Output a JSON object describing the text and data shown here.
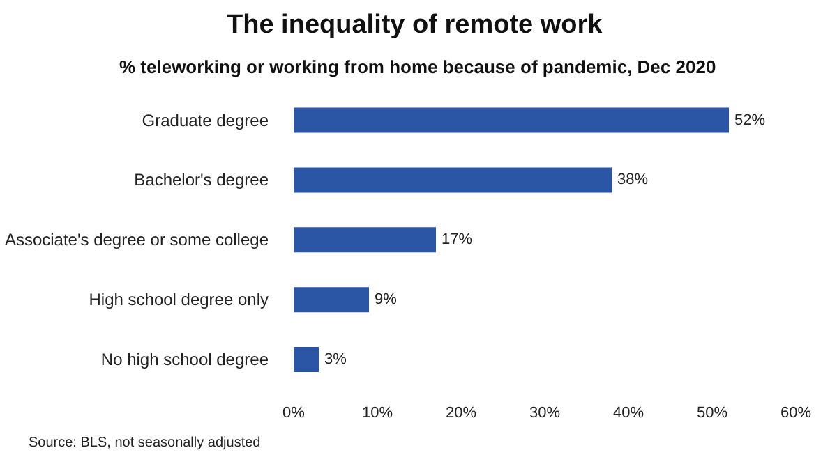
{
  "chart_data": {
    "type": "bar",
    "orientation": "horizontal",
    "title": "The inequality of remote work",
    "subtitle": "% teleworking or working from home because of pandemic, Dec 2020",
    "categories": [
      "Graduate degree",
      "Bachelor's degree",
      "Associate's degree or some college",
      "High school degree only",
      "No high school degree"
    ],
    "values": [
      52,
      38,
      17,
      9,
      3
    ],
    "color": "#2b55a5",
    "value_labels": [
      "52%",
      "38%",
      "17%",
      "9%",
      "3%"
    ],
    "xlim": [
      0,
      60
    ],
    "xticks": [
      {
        "value": 0,
        "label": "0%"
      },
      {
        "value": 10,
        "label": "10%"
      },
      {
        "value": 20,
        "label": "20%"
      },
      {
        "value": 30,
        "label": "30%"
      },
      {
        "value": 40,
        "label": "40%"
      },
      {
        "value": 50,
        "label": "50%"
      },
      {
        "value": 60,
        "label": "60%"
      }
    ],
    "grid": false,
    "annotations": [
      "Source: BLS, not seasonally adjusted"
    ]
  }
}
